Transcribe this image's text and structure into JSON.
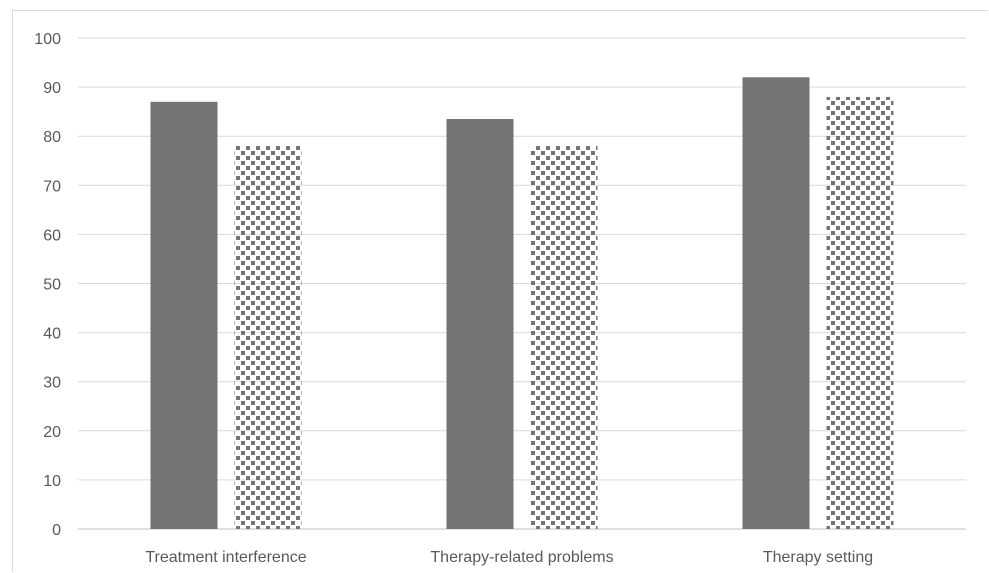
{
  "chart_data": {
    "type": "bar",
    "title": "",
    "xlabel": "",
    "ylabel": "",
    "categories": [
      "Treatment interference",
      "Therapy-related problems",
      "Therapy setting"
    ],
    "series": [
      {
        "values": [
          87,
          83.5,
          92
        ],
        "color": "#747474",
        "fill": "solid"
      },
      {
        "values": [
          78,
          78,
          88
        ],
        "color": "#747474",
        "fill": "dotted"
      }
    ],
    "ylim": [
      0,
      100
    ],
    "yticks": [
      "0",
      "10",
      "20",
      "30",
      "40",
      "50",
      "60",
      "70",
      "80",
      "90",
      "100"
    ],
    "grid": true,
    "legend": "none"
  }
}
